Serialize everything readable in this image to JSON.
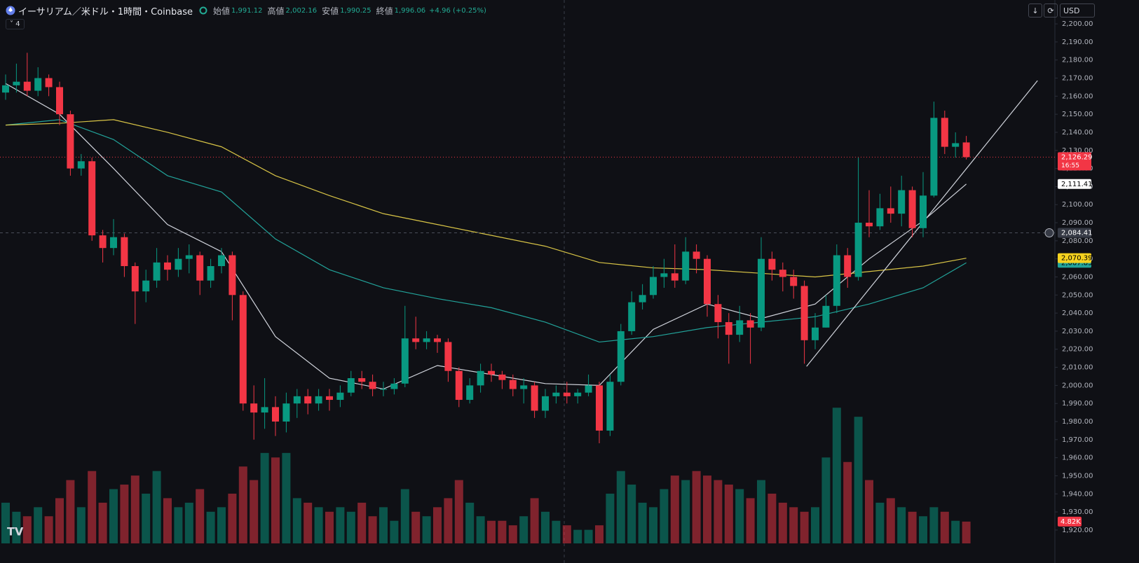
{
  "header": {
    "symbol": "イーサリアム／米ドル・1時間・Coinbase",
    "ohlc": [
      {
        "label": "始値",
        "value": "1,991.12"
      },
      {
        "label": "高値",
        "value": "2,002.16"
      },
      {
        "label": "安値",
        "value": "1,990.25"
      },
      {
        "label": "終値",
        "value": "1,996.06"
      }
    ],
    "change": "+4.96 (+0.25%)",
    "indicators": "4",
    "currency": "USD"
  },
  "chart_data": {
    "type": "candlestick",
    "up_color": "#089981",
    "down_color": "#f23645",
    "ylim": [
      1912.6,
      2213.2
    ],
    "yticks": [
      {
        "value": 2200,
        "label": "2,200.00"
      },
      {
        "value": 2190,
        "label": "2,190.00"
      },
      {
        "value": 2180,
        "label": "2,180.00"
      },
      {
        "value": 2170,
        "label": "2,170.00"
      },
      {
        "value": 2160,
        "label": "2,160.00"
      },
      {
        "value": 2150,
        "label": "2,150.00"
      },
      {
        "value": 2140,
        "label": "2,140.00"
      },
      {
        "value": 2130,
        "label": "2,130.00"
      },
      {
        "value": 2120,
        "label": "2,120.00"
      },
      {
        "value": 2110,
        "label": "2,110.00"
      },
      {
        "value": 2100,
        "label": "2,100.00"
      },
      {
        "value": 2090,
        "label": "2,090.00"
      },
      {
        "value": 2080,
        "label": "2,080.00"
      },
      {
        "value": 2070,
        "label": "2,070.00"
      },
      {
        "value": 2060,
        "label": "2,060.00"
      },
      {
        "value": 2050,
        "label": "2,050.00"
      },
      {
        "value": 2040,
        "label": "2,040.00"
      },
      {
        "value": 2030,
        "label": "2,030.00"
      },
      {
        "value": 2020,
        "label": "2,020.00"
      },
      {
        "value": 2010,
        "label": "2,010.00"
      },
      {
        "value": 2000,
        "label": "2,000.00"
      },
      {
        "value": 1990,
        "label": "1,990.00"
      },
      {
        "value": 1980,
        "label": "1,980.00"
      },
      {
        "value": 1970,
        "label": "1,970.00"
      },
      {
        "value": 1960,
        "label": "1,960.00"
      },
      {
        "value": 1950,
        "label": "1,950.00"
      },
      {
        "value": 1940,
        "label": "1,940.00"
      },
      {
        "value": 1930,
        "label": "1,930.00"
      },
      {
        "value": 1920,
        "label": "1,920.00"
      }
    ],
    "open": [
      2162,
      2166,
      2168,
      2163,
      2170,
      2165,
      2150,
      2120,
      2124,
      2083,
      2076,
      2082,
      2066,
      2052,
      2058,
      2068,
      2064,
      2070,
      2072,
      2058,
      2066,
      2072,
      2050,
      1990,
      1985,
      1988,
      1980,
      1990,
      1994,
      1990,
      1994,
      1992,
      1996,
      2004,
      2002,
      1998,
      1998,
      2001,
      2026,
      2024,
      2026,
      2024,
      2008,
      1992,
      2000,
      2008,
      2006,
      2003,
      1998,
      2000,
      1986,
      1994,
      1996,
      1994,
      1996,
      2000,
      1975,
      2002,
      2030,
      2046,
      2050,
      2060,
      2062,
      2058,
      2074,
      2070,
      2045,
      2035,
      2028,
      2036,
      2032,
      2070,
      2064,
      2060,
      2055,
      2025,
      2032,
      2044,
      2072,
      2060,
      2090,
      2088,
      2098,
      2095,
      2108,
      2087,
      2105,
      2148,
      2132,
      2134.41
    ],
    "high": [
      2172,
      2178,
      2184,
      2176,
      2172,
      2168,
      2152,
      2128,
      2126,
      2086,
      2092,
      2084,
      2068,
      2064,
      2076,
      2072,
      2076,
      2078,
      2074,
      2070,
      2076,
      2074,
      2052,
      2000,
      2004,
      1994,
      1996,
      1998,
      1998,
      1998,
      1998,
      2000,
      2008,
      2008,
      2006,
      2002,
      2004,
      2044,
      2038,
      2030,
      2028,
      2026,
      2010,
      2004,
      2012,
      2012,
      2008,
      2006,
      2004,
      2002,
      1998,
      2000,
      2002,
      1998,
      2006,
      2002,
      2006,
      2034,
      2052,
      2056,
      2066,
      2070,
      2078,
      2082,
      2078,
      2072,
      2050,
      2040,
      2044,
      2040,
      2082,
      2074,
      2068,
      2064,
      2058,
      2040,
      2050,
      2078,
      2076,
      2126,
      2108,
      2106,
      2110,
      2116,
      2110,
      2118,
      2157,
      2152,
      2140,
      2138
    ],
    "low": [
      2158,
      2162,
      2160,
      2160,
      2160,
      2144,
      2116,
      2116,
      2080,
      2068,
      2072,
      2060,
      2034,
      2046,
      2054,
      2058,
      2060,
      2062,
      2050,
      2054,
      2062,
      2036,
      1986,
      1970,
      1976,
      1972,
      1974,
      1982,
      1984,
      1986,
      1986,
      1988,
      1994,
      1998,
      1994,
      1994,
      1995,
      1999,
      2020,
      2020,
      2018,
      2002,
      1988,
      1990,
      1996,
      2002,
      1998,
      1994,
      1990,
      1982,
      1982,
      1990,
      1990,
      1990,
      1994,
      1968,
      1972,
      2000,
      2028,
      2042,
      2048,
      2054,
      2054,
      2056,
      2062,
      2038,
      2026,
      2012,
      2024,
      2012,
      2030,
      2058,
      2052,
      2048,
      2012,
      2020,
      2032,
      2040,
      2054,
      2058,
      2082,
      2086,
      2090,
      2088,
      2082,
      2082,
      2104,
      2128,
      2126,
      2125
    ],
    "close": [
      2166,
      2168,
      2163,
      2170,
      2165,
      2150,
      2120,
      2124,
      2083,
      2076,
      2082,
      2066,
      2052,
      2058,
      2068,
      2064,
      2070,
      2072,
      2058,
      2066,
      2072,
      2050,
      1990,
      1985,
      1988,
      1980,
      1990,
      1994,
      1990,
      1994,
      1992,
      1996,
      2004,
      2002,
      1998,
      1998,
      2001,
      2026,
      2024,
      2026,
      2024,
      2008,
      1992,
      2000,
      2008,
      2006,
      2003,
      1998,
      2000,
      1986,
      1994,
      1996,
      1994,
      1996,
      2000,
      1975,
      2002,
      2030,
      2046,
      2050,
      2060,
      2062,
      2058,
      2074,
      2070,
      2045,
      2035,
      2028,
      2036,
      2032,
      2070,
      2064,
      2060,
      2055,
      2025,
      2032,
      2044,
      2072,
      2060,
      2090,
      2088,
      2098,
      2095,
      2108,
      2087,
      2105,
      2148,
      2132,
      2134,
      2126.29
    ],
    "volume": {
      "ylim": [
        0,
        48000
      ],
      "values": [
        9000,
        7000,
        6000,
        8000,
        6000,
        10000,
        14000,
        8000,
        16000,
        9000,
        12000,
        13000,
        15000,
        11000,
        16000,
        10000,
        8000,
        9000,
        12000,
        7000,
        8000,
        11000,
        17000,
        14000,
        20000,
        19000,
        20000,
        10000,
        9000,
        8000,
        7000,
        8000,
        7000,
        9000,
        6000,
        8000,
        5000,
        12000,
        7000,
        6000,
        8000,
        10000,
        14000,
        9000,
        6000,
        5000,
        5000,
        4000,
        6000,
        10000,
        7000,
        5000,
        4000,
        3000,
        3000,
        4000,
        11000,
        16000,
        13000,
        9000,
        8000,
        12000,
        15000,
        14000,
        16000,
        15000,
        14000,
        13000,
        12000,
        10000,
        14000,
        11000,
        9000,
        8000,
        7000,
        8000,
        19000,
        30000,
        18000,
        28000,
        14000,
        9000,
        10000,
        8000,
        7000,
        6000,
        8000,
        7000,
        5000,
        4820
      ],
      "last_label": "4.82K"
    },
    "series": [
      {
        "color": "#d1d4dc",
        "x": [
          0,
          5,
          10,
          15,
          20,
          25,
          30,
          35,
          40,
          45,
          50,
          55,
          60,
          65,
          70,
          75,
          80,
          85,
          89
        ],
        "values": [
          2167,
          2150,
          2120,
          2089,
          2074,
          2027,
          2004,
          1998,
          2011,
          2006,
          2001,
          2000,
          2031,
          2045,
          2037,
          2045,
          2070,
          2091,
          2111.41
        ],
        "label": "2,111.41"
      },
      {
        "color": "#22a39a",
        "x": [
          0,
          5,
          10,
          15,
          20,
          25,
          30,
          35,
          40,
          45,
          50,
          55,
          60,
          65,
          70,
          75,
          80,
          85,
          89
        ],
        "values": [
          2144,
          2147,
          2136,
          2116,
          2107,
          2081,
          2064,
          2054,
          2048,
          2043,
          2035,
          2024,
          2027,
          2032,
          2035,
          2038,
          2045,
          2054,
          2067.83
        ],
        "label": "2,067.83"
      },
      {
        "color": "#d8c446",
        "x": [
          0,
          5,
          10,
          15,
          20,
          25,
          30,
          35,
          40,
          45,
          50,
          55,
          60,
          65,
          70,
          75,
          80,
          85,
          89
        ],
        "values": [
          2144,
          2145,
          2147,
          2140,
          2132,
          2116,
          2105,
          2095,
          2089,
          2083,
          2077,
          2068,
          2065,
          2064,
          2062,
          2060,
          2063,
          2066,
          2070.39
        ],
        "label": "2,070.39"
      }
    ],
    "last_price": {
      "value": 2126.29,
      "label": "2,126.29",
      "countdown": "16:55"
    },
    "crosshair": {
      "value": 2084.41,
      "label": "2,084.41"
    },
    "trendline": {
      "x": [
        74.2,
        95.6
      ],
      "y": [
        2010.5,
        2168.6
      ],
      "color": "#d1d4dc"
    }
  }
}
